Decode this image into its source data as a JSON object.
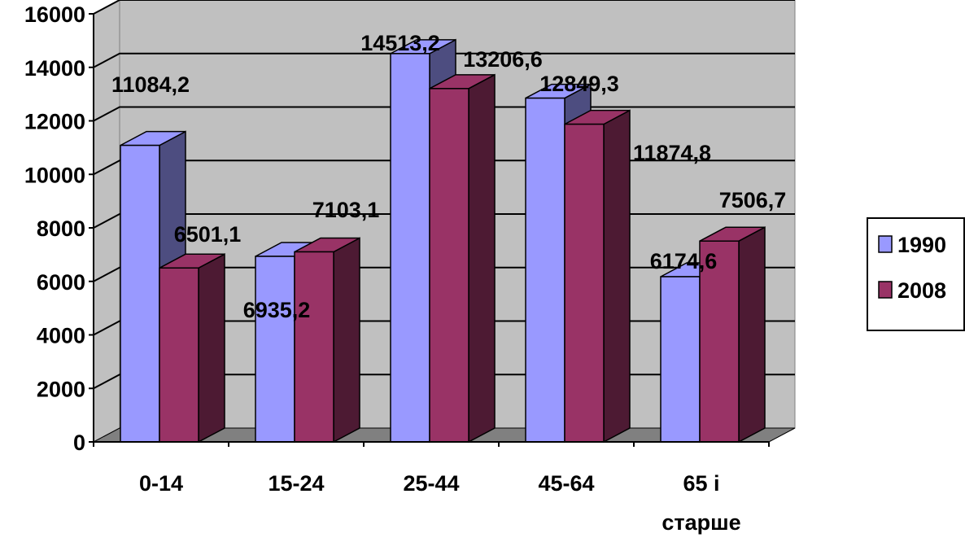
{
  "chart_data": {
    "type": "bar",
    "categories": [
      "0-14",
      "15-24",
      "25-44",
      "45-64",
      "65 і старше"
    ],
    "series": [
      {
        "name": "1990",
        "color": "#9999ff",
        "side_color": "#4d4d80",
        "values": [
          11084.2,
          6935.2,
          14513.2,
          12849.3,
          6174.6
        ],
        "labels": [
          "11084,2",
          "6935,2",
          "14513,2",
          "12849,3",
          "6174,6"
        ]
      },
      {
        "name": "2008",
        "color": "#993366",
        "side_color": "#4d1a33",
        "values": [
          6501.1,
          7103.1,
          13206.6,
          11874.8,
          7506.7
        ],
        "labels": [
          "6501,1",
          "7103,1",
          "13206,6",
          "11874,8",
          "7506,7"
        ]
      }
    ],
    "yticks": [
      "0",
      "2000",
      "4000",
      "6000",
      "8000",
      "10000",
      "12000",
      "14000",
      "16000"
    ],
    "ylim": [
      0,
      16000
    ],
    "grid": true,
    "legend_position": "right",
    "wall_color": "#c0c0c0",
    "floor_color": "#808080"
  }
}
